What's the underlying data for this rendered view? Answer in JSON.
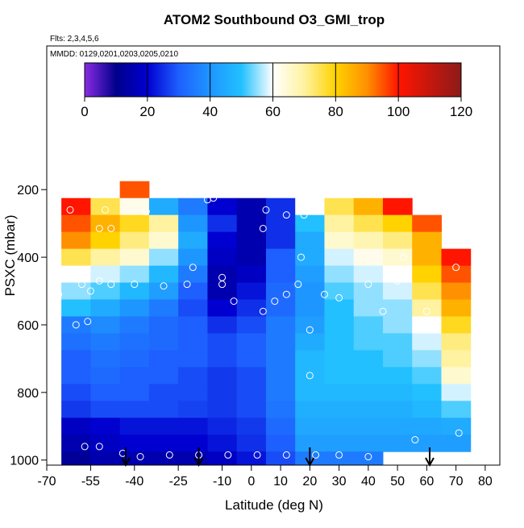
{
  "chart_data": {
    "type": "heatmap",
    "title": "ATOM2 Southbound O3_GMI_trop",
    "subtitle": "Flts: 2,3,4,5,6",
    "annotation": "MMDD: 0129,0201,0203,0205,0210",
    "x_label": "Latitude (deg N)",
    "y_label": "PSXC (mbar)",
    "xlim": [
      -70,
      85
    ],
    "ylim": [
      1015,
      -225
    ],
    "xticks": [
      -70,
      -55,
      -40,
      -25,
      -10,
      0,
      10,
      20,
      30,
      40,
      50,
      60,
      70,
      80
    ],
    "yticks": [
      200,
      400,
      600,
      800,
      1000
    ],
    "x_bins": [
      -65,
      -55,
      -45,
      -35,
      -25,
      -15,
      -5,
      5,
      15,
      25,
      35,
      45,
      55,
      65,
      75
    ],
    "y_bins": [
      175,
      225,
      275,
      325,
      375,
      425,
      475,
      525,
      575,
      625,
      675,
      725,
      775,
      825,
      875,
      925,
      975,
      1015
    ],
    "z": [
      [
        null,
        null,
        95,
        null,
        null,
        null,
        null,
        null,
        null,
        null,
        null,
        null,
        null,
        null
      ],
      [
        100,
        75,
        62,
        45,
        35,
        20,
        15,
        25,
        60,
        75,
        85,
        100,
        null,
        null
      ],
      [
        95,
        85,
        78,
        70,
        40,
        25,
        15,
        25,
        50,
        70,
        75,
        80,
        95,
        null
      ],
      [
        90,
        80,
        72,
        65,
        45,
        20,
        15,
        25,
        45,
        65,
        68,
        72,
        85,
        null
      ],
      [
        75,
        70,
        65,
        55,
        40,
        18,
        15,
        30,
        45,
        58,
        62,
        65,
        85,
        100
      ],
      [
        60,
        58,
        55,
        48,
        35,
        15,
        18,
        30,
        42,
        55,
        58,
        60,
        80,
        95
      ],
      [
        55,
        52,
        48,
        42,
        30,
        15,
        22,
        32,
        40,
        52,
        55,
        58,
        75,
        90
      ],
      [
        50,
        45,
        40,
        35,
        28,
        20,
        25,
        32,
        40,
        50,
        55,
        55,
        70,
        85
      ],
      [
        35,
        38,
        35,
        32,
        30,
        25,
        28,
        35,
        42,
        50,
        52,
        55,
        60,
        78
      ],
      [
        33,
        35,
        33,
        32,
        30,
        28,
        30,
        35,
        45,
        50,
        52,
        52,
        58,
        72
      ],
      [
        30,
        33,
        32,
        30,
        30,
        28,
        30,
        35,
        48,
        50,
        50,
        52,
        55,
        70
      ],
      [
        30,
        32,
        30,
        30,
        28,
        26,
        28,
        35,
        48,
        50,
        50,
        50,
        52,
        65
      ],
      [
        28,
        30,
        30,
        28,
        28,
        26,
        28,
        35,
        48,
        48,
        48,
        48,
        50,
        58
      ],
      [
        26,
        28,
        28,
        28,
        27,
        26,
        28,
        34,
        46,
        46,
        46,
        46,
        48,
        52
      ],
      [
        18,
        20,
        22,
        22,
        22,
        24,
        26,
        32,
        44,
        44,
        44,
        44,
        44,
        45
      ],
      [
        15,
        18,
        20,
        20,
        20,
        22,
        25,
        30,
        42,
        42,
        42,
        42,
        42,
        42
      ],
      [
        12,
        15,
        15,
        15,
        15,
        18,
        22,
        28,
        35,
        35,
        35,
        null,
        null,
        null
      ]
    ],
    "color_stops": [
      0,
      10,
      20,
      30,
      40,
      50,
      60,
      70,
      80,
      90,
      100,
      120
    ],
    "colors": [
      "#8a2be2",
      "#00008b",
      "#0000d0",
      "#1e5fff",
      "#1e96ff",
      "#22c0ff",
      "#ffffff",
      "#fff2a0",
      "#ffd200",
      "#ff9000",
      "#ff1500",
      "#8b1a1a"
    ],
    "colorbar_lim": [
      0,
      120
    ],
    "colorbar_ticks": [
      0,
      20,
      40,
      60,
      80,
      100,
      120
    ],
    "points": {
      "x": [
        -66,
        -58,
        -52,
        -48,
        -55,
        -40,
        -30,
        -22,
        -10,
        -10,
        -6,
        4,
        8,
        12,
        16,
        25,
        30,
        40,
        45,
        50,
        -60,
        -56,
        -20,
        -15,
        -13,
        5,
        4,
        12,
        18,
        -48,
        -52,
        -57,
        -52,
        -44,
        -38,
        -28,
        -18,
        -8,
        2,
        12,
        22,
        30,
        40,
        48,
        56,
        71,
        70,
        60,
        52,
        17,
        20,
        20,
        -62,
        -50,
        -36
      ],
      "y": [
        510,
        480,
        470,
        480,
        500,
        480,
        485,
        480,
        460,
        480,
        530,
        560,
        530,
        510,
        480,
        510,
        520,
        480,
        560,
        470,
        600,
        590,
        430,
        230,
        225,
        260,
        315,
        275,
        275,
        315,
        315,
        960,
        960,
        980,
        990,
        985,
        985,
        985,
        985,
        985,
        985,
        985,
        990,
        995,
        940,
        920,
        430,
        560,
        400,
        400,
        615,
        750,
        260,
        260,
        265
      ]
    },
    "arrows": [
      -43,
      -18,
      20,
      61
    ]
  }
}
